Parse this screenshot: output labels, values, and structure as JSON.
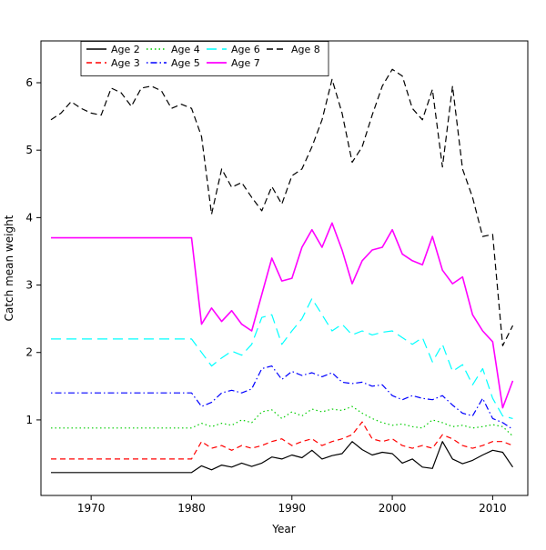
{
  "figure": {
    "background": "#ffffff"
  },
  "chart_data": {
    "type": "line",
    "title": "",
    "xlabel": "Year",
    "ylabel": "Catch mean weight",
    "xlim": [
      1965,
      2013.5
    ],
    "ylim": [
      -0.12,
      6.62
    ],
    "xticks": [
      1970,
      1980,
      1990,
      2000,
      2010
    ],
    "yticks": [
      1,
      2,
      3,
      4,
      5,
      6
    ],
    "grid": false,
    "legend_position": "top-left-inside",
    "legend_columns": 4,
    "x": [
      1966,
      1967,
      1968,
      1969,
      1970,
      1971,
      1972,
      1973,
      1974,
      1975,
      1976,
      1977,
      1978,
      1979,
      1980,
      1981,
      1982,
      1983,
      1984,
      1985,
      1986,
      1987,
      1988,
      1989,
      1990,
      1991,
      1992,
      1993,
      1994,
      1995,
      1996,
      1997,
      1998,
      1999,
      2000,
      2001,
      2002,
      2003,
      2004,
      2005,
      2006,
      2007,
      2008,
      2009,
      2010,
      2011,
      2012
    ],
    "series": [
      {
        "name": "Age 2",
        "color": "#000000",
        "dash": "",
        "width": 1.2,
        "values": [
          0.22,
          0.22,
          0.22,
          0.22,
          0.22,
          0.22,
          0.22,
          0.22,
          0.22,
          0.22,
          0.22,
          0.22,
          0.22,
          0.22,
          0.22,
          0.32,
          0.26,
          0.33,
          0.3,
          0.36,
          0.31,
          0.36,
          0.45,
          0.42,
          0.48,
          0.44,
          0.55,
          0.42,
          0.47,
          0.5,
          0.68,
          0.56,
          0.48,
          0.52,
          0.5,
          0.36,
          0.42,
          0.3,
          0.28,
          0.68,
          0.42,
          0.35,
          0.4,
          0.48,
          0.55,
          0.52,
          0.3
        ]
      },
      {
        "name": "Age 3",
        "color": "#FF0000",
        "dash": "6,4",
        "width": 1.2,
        "values": [
          0.42,
          0.42,
          0.42,
          0.42,
          0.42,
          0.42,
          0.42,
          0.42,
          0.42,
          0.42,
          0.42,
          0.42,
          0.42,
          0.42,
          0.42,
          0.68,
          0.58,
          0.62,
          0.55,
          0.62,
          0.58,
          0.62,
          0.68,
          0.72,
          0.62,
          0.68,
          0.72,
          0.62,
          0.68,
          0.72,
          0.78,
          0.97,
          0.72,
          0.68,
          0.72,
          0.62,
          0.58,
          0.62,
          0.58,
          0.78,
          0.72,
          0.62,
          0.58,
          0.62,
          0.68,
          0.68,
          0.62
        ]
      },
      {
        "name": "Age 4",
        "color": "#00CD00",
        "dash": "1.5,3",
        "width": 1.2,
        "values": [
          0.88,
          0.88,
          0.88,
          0.88,
          0.88,
          0.88,
          0.88,
          0.88,
          0.88,
          0.88,
          0.88,
          0.88,
          0.88,
          0.88,
          0.88,
          0.95,
          0.9,
          0.95,
          0.92,
          1.0,
          0.96,
          1.12,
          1.15,
          1.02,
          1.12,
          1.06,
          1.16,
          1.12,
          1.16,
          1.14,
          1.2,
          1.1,
          1.02,
          0.96,
          0.92,
          0.94,
          0.9,
          0.88,
          1.0,
          0.96,
          0.9,
          0.92,
          0.88,
          0.9,
          0.93,
          0.9,
          0.76
        ]
      },
      {
        "name": "Age 5",
        "color": "#0000FF",
        "dash": "1.5,3,7,3",
        "width": 1.2,
        "values": [
          1.4,
          1.4,
          1.4,
          1.4,
          1.4,
          1.4,
          1.4,
          1.4,
          1.4,
          1.4,
          1.4,
          1.4,
          1.4,
          1.4,
          1.4,
          1.2,
          1.26,
          1.4,
          1.44,
          1.4,
          1.46,
          1.76,
          1.8,
          1.6,
          1.72,
          1.66,
          1.7,
          1.64,
          1.7,
          1.56,
          1.54,
          1.56,
          1.5,
          1.52,
          1.36,
          1.3,
          1.36,
          1.32,
          1.3,
          1.36,
          1.22,
          1.1,
          1.06,
          1.32,
          1.02,
          0.96,
          0.86
        ]
      },
      {
        "name": "Age 6",
        "color": "#00FFFF",
        "dash": "11,6",
        "width": 1.2,
        "values": [
          2.2,
          2.2,
          2.2,
          2.2,
          2.2,
          2.2,
          2.2,
          2.2,
          2.2,
          2.2,
          2.2,
          2.2,
          2.2,
          2.2,
          2.2,
          2.0,
          1.8,
          1.92,
          2.02,
          1.96,
          2.12,
          2.52,
          2.56,
          2.12,
          2.32,
          2.5,
          2.8,
          2.56,
          2.32,
          2.42,
          2.26,
          2.32,
          2.26,
          2.3,
          2.32,
          2.22,
          2.12,
          2.22,
          1.86,
          2.12,
          1.72,
          1.82,
          1.52,
          1.76,
          1.32,
          1.06,
          1.02
        ]
      },
      {
        "name": "Age 7",
        "color": "#FF00FF",
        "dash": "",
        "width": 1.6,
        "values": [
          3.7,
          3.7,
          3.7,
          3.7,
          3.7,
          3.7,
          3.7,
          3.7,
          3.7,
          3.7,
          3.7,
          3.7,
          3.7,
          3.7,
          3.7,
          2.42,
          2.66,
          2.46,
          2.62,
          2.42,
          2.32,
          2.86,
          3.4,
          3.06,
          3.1,
          3.56,
          3.82,
          3.56,
          3.92,
          3.52,
          3.02,
          3.36,
          3.52,
          3.56,
          3.82,
          3.46,
          3.36,
          3.3,
          3.72,
          3.22,
          3.02,
          3.12,
          2.56,
          2.32,
          2.16,
          1.18,
          1.58
        ]
      },
      {
        "name": "Age 8",
        "color": "#000000",
        "dash": "7,4",
        "width": 1.2,
        "values": [
          5.45,
          5.55,
          5.72,
          5.62,
          5.55,
          5.52,
          5.92,
          5.85,
          5.65,
          5.92,
          5.95,
          5.88,
          5.62,
          5.68,
          5.62,
          5.2,
          4.05,
          4.72,
          4.45,
          4.52,
          4.3,
          4.1,
          4.46,
          4.2,
          4.62,
          4.72,
          5.05,
          5.45,
          6.05,
          5.55,
          4.82,
          5.05,
          5.52,
          5.95,
          6.2,
          6.1,
          5.62,
          5.45,
          5.9,
          4.75,
          5.95,
          4.72,
          4.3,
          3.72,
          3.75,
          2.1,
          2.4
        ]
      }
    ]
  }
}
